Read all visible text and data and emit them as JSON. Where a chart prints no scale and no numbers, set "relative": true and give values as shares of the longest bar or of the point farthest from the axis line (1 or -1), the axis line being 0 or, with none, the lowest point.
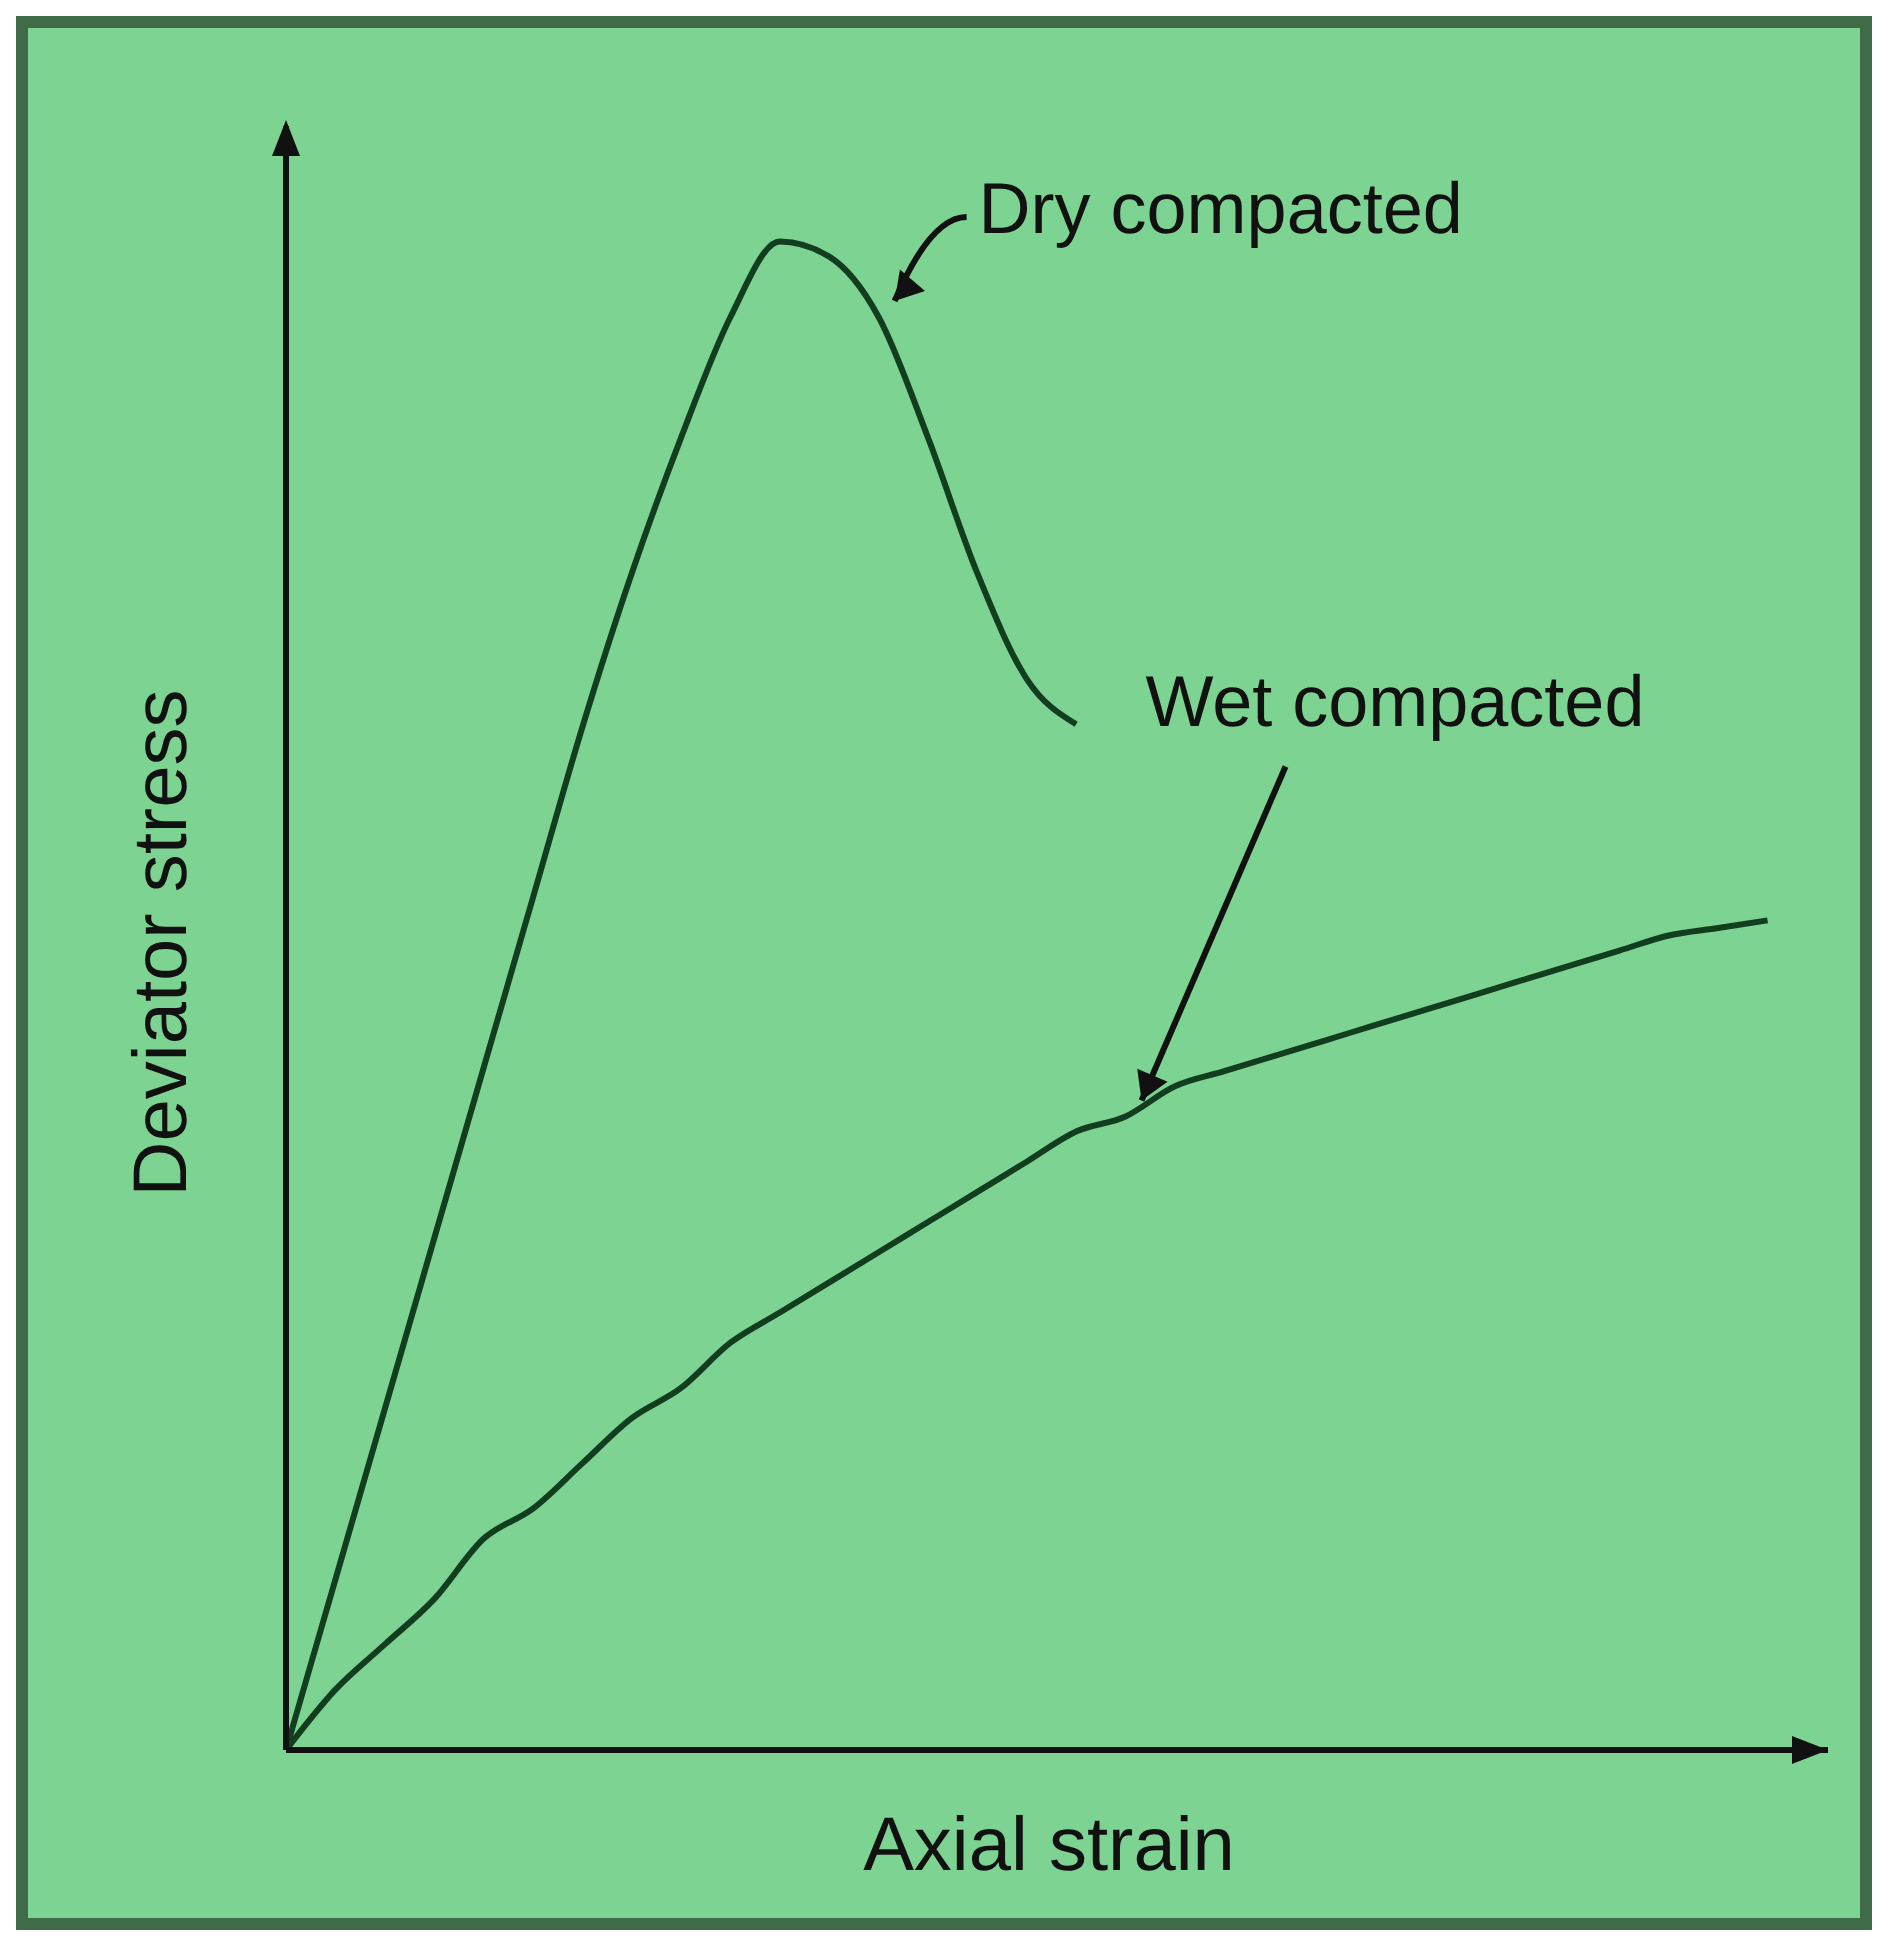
{
  "chart_data": {
    "type": "line",
    "relative": true,
    "xlabel": "Axial strain",
    "ylabel": "Deviator stress",
    "marker": "none",
    "categories": [
      null,
      null,
      null,
      null,
      null,
      null,
      null,
      null,
      null,
      null,
      null,
      null,
      null,
      null,
      null,
      null,
      null,
      null,
      null,
      null,
      null,
      null,
      null,
      null,
      null,
      null,
      null,
      null,
      null,
      null,
      null
    ],
    "series": [
      {
        "name": "Dry compacted",
        "color": "#123d1f",
        "values": [
          0,
          0.113,
          0.226,
          0.339,
          0.452,
          0.565,
          0.678,
          0.78,
          0.87,
          0.95,
          1.0,
          0.99,
          0.95,
          0.87,
          0.78,
          0.71,
          0.68,
          null,
          null,
          null,
          null,
          null,
          null,
          null,
          null,
          null,
          null,
          null,
          null,
          null,
          null
        ]
      },
      {
        "name": "Wet compacted",
        "color": "#123d1f",
        "values": [
          0,
          0.04,
          0.07,
          0.1,
          0.14,
          0.16,
          0.19,
          0.22,
          0.24,
          0.27,
          0.29,
          0.31,
          0.33,
          0.35,
          0.37,
          0.39,
          0.41,
          0.42,
          0.44,
          0.45,
          0.46,
          0.47,
          0.48,
          0.49,
          0.5,
          0.51,
          0.52,
          0.53,
          0.54,
          0.545,
          0.55
        ]
      }
    ]
  }
}
